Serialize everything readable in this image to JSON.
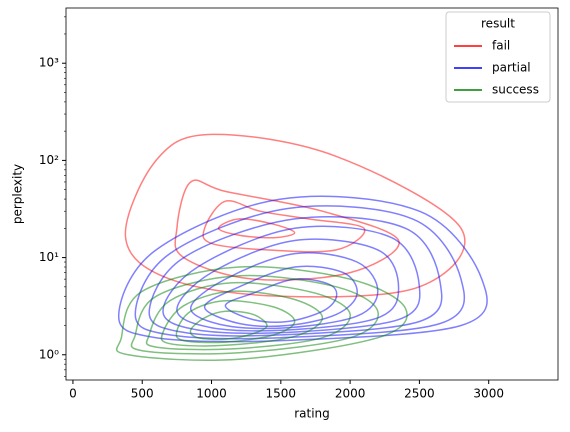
{
  "chart_data": {
    "type": "kde",
    "xlabel": "rating",
    "ylabel": "perplexity",
    "xlim": [
      -50,
      3500
    ],
    "xticks": [
      0,
      500,
      1000,
      1500,
      2000,
      2500,
      3000
    ],
    "ylim": [
      0.55,
      3700
    ],
    "yscale": "log",
    "yticks": [
      {
        "value": 1,
        "label": "10⁰"
      },
      {
        "value": 10,
        "label": "10¹"
      },
      {
        "value": 100,
        "label": "10²"
      },
      {
        "value": 1000,
        "label": "10³"
      }
    ],
    "legend_title": "result",
    "legend_loc": "upper right",
    "series": [
      {
        "name": "fail",
        "color": "#ff0000",
        "contours": [
          {
            "x": [
              380,
              600,
              1000,
              1900,
              2800,
              2500,
              1500,
              700
            ],
            "y": [
              16,
              100,
              185,
              110,
              20,
              5,
              4,
              6
            ]
          },
          {
            "x": [
              750,
              850,
              1100,
              1800,
              2350,
              2000,
              1300,
              800
            ],
            "y": [
              20,
              60,
              48,
              30,
              15,
              7,
              6,
              10
            ]
          },
          {
            "x": [
              950,
              1100,
              1350,
              1700,
              2100,
              1900,
              1400,
              1000
            ],
            "y": [
              20,
              38,
              30,
              25,
              20,
              12,
              12,
              14
            ]
          },
          {
            "x": [
              1050,
              1200,
              1450,
              1600,
              1450,
              1200
            ],
            "y": [
              20,
              25,
              22,
              18,
              16,
              17
            ]
          }
        ]
      },
      {
        "name": "partial",
        "color": "#0000ff",
        "contours": [
          {
            "x": [
              330,
              600,
              1500,
              2500,
              2950,
              2800,
              1500,
              600
            ],
            "y": [
              2.5,
              12,
              40,
              30,
              6,
              2,
              1.4,
              1.5
            ]
          },
          {
            "x": [
              450,
              700,
              1550,
              2450,
              2800,
              2650,
              1500,
              700
            ],
            "y": [
              2.6,
              11,
              32,
              25,
              6,
              2.1,
              1.5,
              1.6
            ]
          },
          {
            "x": [
              550,
              800,
              1600,
              2400,
              2650,
              2500,
              1500,
              800
            ],
            "y": [
              2.7,
              10,
              25,
              20,
              5.5,
              2.2,
              1.6,
              1.7
            ]
          },
          {
            "x": [
              650,
              900,
              1600,
              2300,
              2500,
              2350,
              1550,
              900
            ],
            "y": [
              2.8,
              8,
              20,
              16,
              5,
              2.3,
              1.7,
              1.8
            ]
          },
          {
            "x": [
              750,
              1000,
              1600,
              2200,
              2350,
              2200,
              1550,
              1000
            ],
            "y": [
              2.9,
              7,
              15,
              12,
              4.8,
              2.4,
              1.8,
              1.9
            ]
          },
          {
            "x": [
              850,
              1100,
              1600,
              2050,
              2200,
              2050,
              1550,
              1100
            ],
            "y": [
              3,
              6,
              11,
              9,
              4.5,
              2.5,
              1.9,
              2
            ]
          },
          {
            "x": [
              950,
              1200,
              1600,
              1950,
              2050,
              1900,
              1550,
              1200
            ],
            "y": [
              3.1,
              5,
              8,
              7,
              4.2,
              2.6,
              2,
              2.1
            ]
          },
          {
            "x": [
              1100,
              1300,
              1600,
              1850,
              1900,
              1800,
              1550,
              1300
            ],
            "y": [
              3.2,
              4.3,
              6,
              5.3,
              3.9,
              2.8,
              2.2,
              2.3
            ]
          }
        ]
      },
      {
        "name": "success",
        "color": "#008000",
        "contours": [
          {
            "x": [
              350,
              500,
              1200,
              2000,
              2400,
              2200,
              1200,
              400
            ],
            "y": [
              1.5,
              4.5,
              8,
              6,
              3,
              1.5,
              0.9,
              1.0
            ]
          },
          {
            "x": [
              450,
              600,
              1200,
              1900,
              2200,
              2000,
              1200,
              500
            ],
            "y": [
              1.6,
              4,
              6.5,
              5,
              2.8,
              1.5,
              1.05,
              1.1
            ]
          },
          {
            "x": [
              550,
              700,
              1150,
              1750,
              2000,
              1800,
              1150,
              600
            ],
            "y": [
              1.6,
              3.6,
              5.5,
              4.3,
              2.6,
              1.5,
              1.15,
              1.2
            ]
          },
          {
            "x": [
              650,
              800,
              1150,
              1600,
              1800,
              1600,
              1100,
              700
            ],
            "y": [
              1.7,
              3.2,
              4.5,
              3.7,
              2.4,
              1.55,
              1.25,
              1.3
            ]
          },
          {
            "x": [
              750,
              850,
              1100,
              1450,
              1600,
              1450,
              1100,
              800
            ],
            "y": [
              1.75,
              2.8,
              3.6,
              3.1,
              2.2,
              1.6,
              1.35,
              1.4
            ]
          },
          {
            "x": [
              850,
              950,
              1100,
              1300,
              1400,
              1300,
              1100,
              900
            ],
            "y": [
              1.8,
              2.4,
              2.8,
              2.6,
              2,
              1.65,
              1.45,
              1.5
            ]
          }
        ]
      }
    ]
  }
}
